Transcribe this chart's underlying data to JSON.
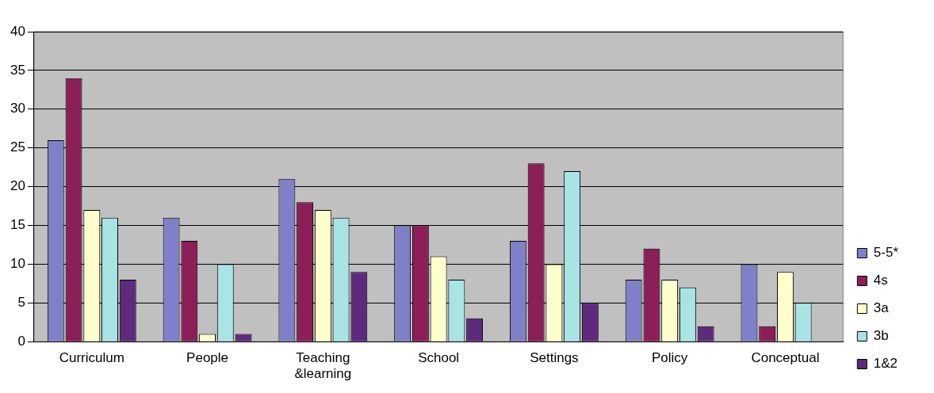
{
  "chart_data": {
    "type": "bar",
    "categories": [
      "Curriculum",
      "People",
      "Teaching &learning",
      "School",
      "Settings",
      "Policy",
      "Conceptual"
    ],
    "series": [
      {
        "name": "5-5*",
        "color": "#8080c8",
        "values": [
          26,
          16,
          21,
          15,
          13,
          8,
          10
        ]
      },
      {
        "name": "4s",
        "color": "#8c1e58",
        "values": [
          34,
          13,
          18,
          15,
          23,
          12,
          2
        ]
      },
      {
        "name": "3a",
        "color": "#ffffcc",
        "values": [
          17,
          1,
          17,
          11,
          10,
          8,
          9
        ]
      },
      {
        "name": "3b",
        "color": "#a8e4e4",
        "values": [
          16,
          10,
          16,
          8,
          22,
          7,
          5
        ]
      },
      {
        "name": "1&2",
        "color": "#5e2a7e",
        "values": [
          8,
          1,
          9,
          3,
          5,
          2,
          0
        ]
      }
    ],
    "ylim": [
      0,
      40
    ],
    "yticks": [
      0,
      5,
      10,
      15,
      20,
      25,
      30,
      35,
      40
    ],
    "grid": "y",
    "legend": "bottom right"
  }
}
